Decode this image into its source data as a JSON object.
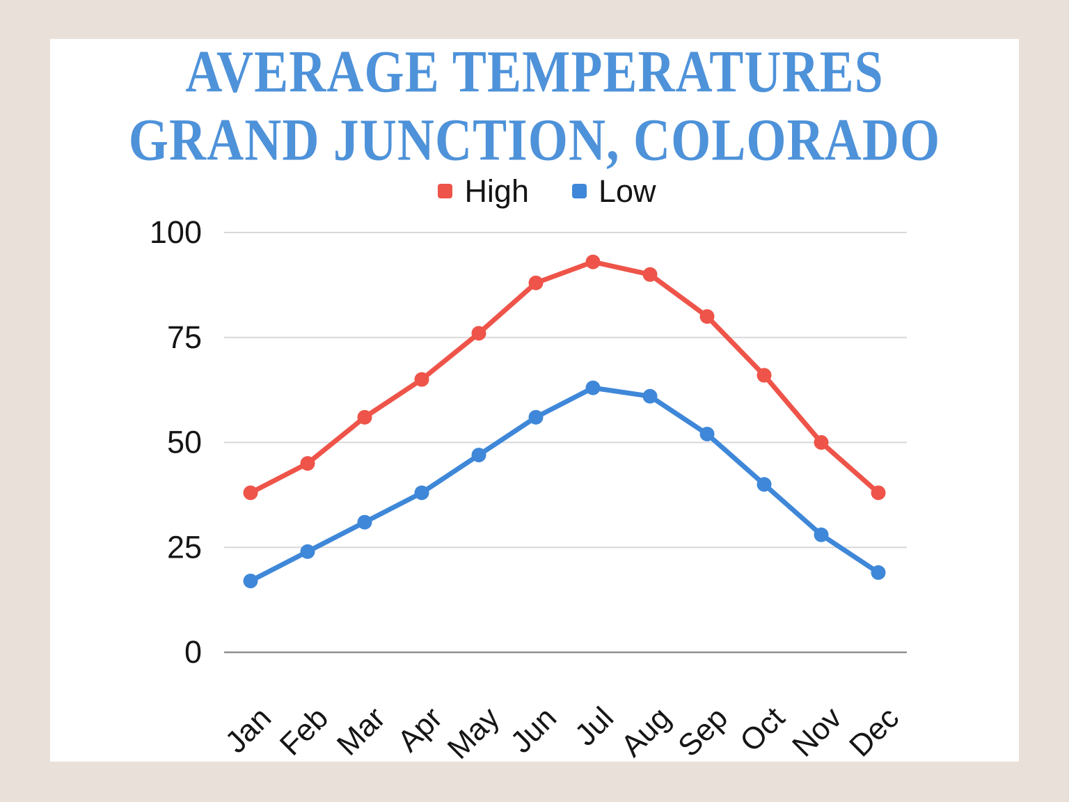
{
  "page": {
    "background_color": "#EAE0DA",
    "card_color": "#FFFFFF"
  },
  "title": {
    "line1": "AVERAGE TEMPERATURES",
    "line2": "GRAND JUNCTION, COLORADO",
    "color": "#4E92D9"
  },
  "chart_data": {
    "type": "line",
    "title": "Average Temperatures — Grand Junction, Colorado",
    "categories": [
      "Jan",
      "Feb",
      "Mar",
      "Apr",
      "May",
      "Jun",
      "Jul",
      "Aug",
      "Sep",
      "Oct",
      "Nov",
      "Dec"
    ],
    "series": [
      {
        "name": "High",
        "color": "#EE5449",
        "values": [
          38,
          45,
          56,
          65,
          76,
          88,
          93,
          90,
          80,
          66,
          50,
          38
        ]
      },
      {
        "name": "Low",
        "color": "#3F87D8",
        "values": [
          17,
          24,
          31,
          38,
          47,
          56,
          63,
          61,
          52,
          40,
          28,
          19
        ]
      }
    ],
    "xlabel": "",
    "ylabel": "",
    "ylim": [
      0,
      100
    ],
    "y_ticks": [
      0,
      25,
      50,
      75,
      100
    ],
    "grid": "horizontal",
    "grid_color": "#D8D8D8",
    "zero_line_color": "#8F8F8F",
    "tick_label_color": "#151515",
    "legend_position": "top",
    "marker": "circle",
    "x_label_rotation_deg": -45
  }
}
